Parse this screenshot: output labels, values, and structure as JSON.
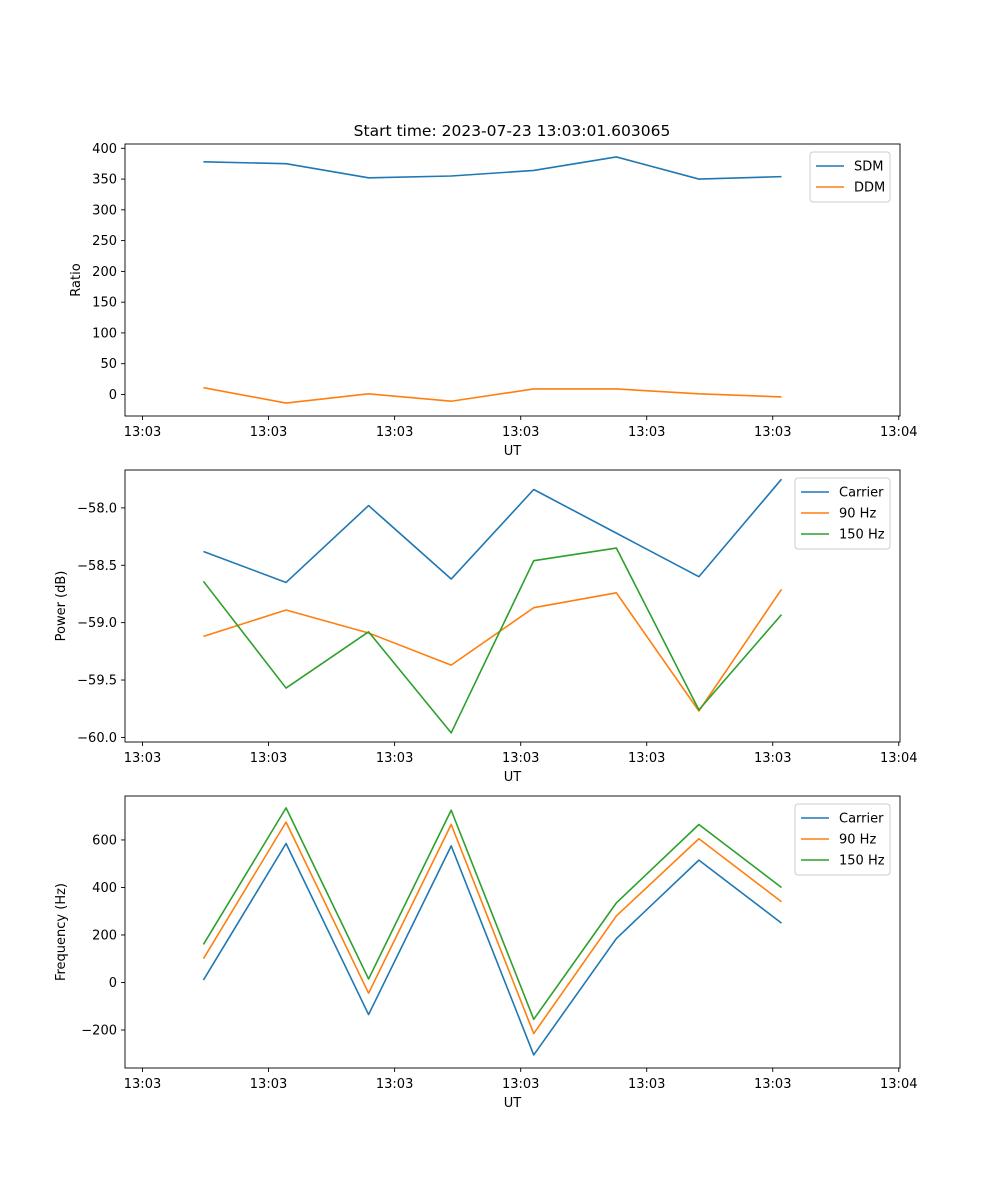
{
  "figure_title": "Start time: 2023-07-23 13:03:01.603065",
  "chart_data": [
    {
      "type": "line",
      "xlabel": "UT",
      "ylabel": "Ratio",
      "x_tick_labels": [
        "13:03",
        "13:03",
        "13:03",
        "13:03",
        "13:03",
        "13:03",
        "13:04"
      ],
      "y_ticks": [
        0,
        50,
        100,
        150,
        200,
        250,
        300,
        350,
        400
      ],
      "y_tick_labels": [
        "0",
        "50",
        "100",
        "150",
        "200",
        "250",
        "300",
        "350",
        "400"
      ],
      "ylim": [
        -35,
        407
      ],
      "legend_position": "top-right",
      "series": [
        {
          "name": "SDM",
          "color": "#1f77b4",
          "values": [
            378,
            375,
            352,
            355,
            364,
            386,
            350,
            354
          ]
        },
        {
          "name": "DDM",
          "color": "#ff7f0e",
          "values": [
            11,
            -14,
            1,
            -11,
            9,
            9,
            1,
            -4
          ]
        }
      ]
    },
    {
      "type": "line",
      "xlabel": "UT",
      "ylabel": "Power (dB)",
      "x_tick_labels": [
        "13:03",
        "13:03",
        "13:03",
        "13:03",
        "13:03",
        "13:03",
        "13:04"
      ],
      "y_ticks": [
        -60.0,
        -59.5,
        -59.0,
        -58.5,
        -58.0
      ],
      "y_tick_labels": [
        "−60.0",
        "−59.5",
        "−59.0",
        "−58.5",
        "−58.0"
      ],
      "ylim": [
        -60.04,
        -57.67
      ],
      "legend_position": "top-right",
      "series": [
        {
          "name": "Carrier",
          "color": "#1f77b4",
          "values": [
            -58.38,
            -58.65,
            -57.98,
            -58.62,
            -57.84,
            -58.22,
            -58.6,
            -57.75
          ]
        },
        {
          "name": "90 Hz",
          "color": "#ff7f0e",
          "values": [
            -59.12,
            -58.89,
            -59.09,
            -59.37,
            -58.87,
            -58.74,
            -59.77,
            -58.71
          ]
        },
        {
          "name": "150 Hz",
          "color": "#2ca02c",
          "values": [
            -58.64,
            -59.57,
            -59.08,
            -59.96,
            -58.46,
            -58.35,
            -59.76,
            -58.93
          ]
        }
      ]
    },
    {
      "type": "line",
      "xlabel": "UT",
      "ylabel": "Frequency (Hz)",
      "x_tick_labels": [
        "13:03",
        "13:03",
        "13:03",
        "13:03",
        "13:03",
        "13:03",
        "13:04"
      ],
      "y_ticks": [
        -200,
        0,
        200,
        400,
        600
      ],
      "y_tick_labels": [
        "−200",
        "0",
        "200",
        "400",
        "600"
      ],
      "ylim": [
        -360,
        785
      ],
      "legend_position": "top-right",
      "series": [
        {
          "name": "Carrier",
          "color": "#1f77b4",
          "values": [
            10,
            585,
            -135,
            575,
            -305,
            185,
            515,
            250
          ]
        },
        {
          "name": "90 Hz",
          "color": "#ff7f0e",
          "values": [
            100,
            675,
            -45,
            665,
            -215,
            280,
            605,
            340
          ]
        },
        {
          "name": "150 Hz",
          "color": "#2ca02c",
          "values": [
            160,
            735,
            15,
            725,
            -155,
            335,
            665,
            400
          ]
        }
      ]
    }
  ]
}
